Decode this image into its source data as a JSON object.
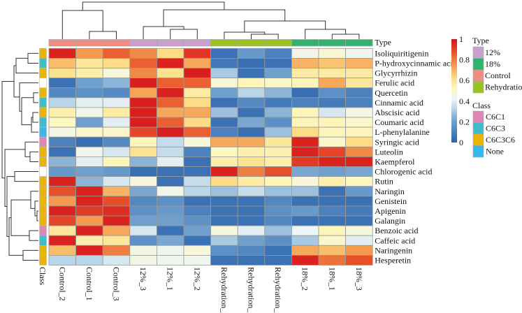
{
  "chart_data": {
    "type": "heatmap",
    "title": "",
    "columns": [
      "Control_2",
      "Control_1",
      "Control_3",
      "12%_3",
      "12%_1",
      "12%_2",
      "Rehydration_2",
      "Rehydration_1",
      "Rehydration_3",
      "18%_2",
      "18%_1",
      "18%_3"
    ],
    "column_types": [
      "Control",
      "Control",
      "Control",
      "12%",
      "12%",
      "12%",
      "Rehydration",
      "Rehydration",
      "Rehydration",
      "18%",
      "18%",
      "18%"
    ],
    "rows": [
      "Isoliquiritigenin",
      "P-hydroxycinnamic acid",
      "Glycyrrhizin",
      "Ferulic acid",
      "Quercetin",
      "Cinnamic acid",
      "Abscisic acid",
      "Coumaric acid",
      "L-phenylalanine",
      "Syringic acid",
      "Luteolin",
      "Kaempferol",
      "Chlorogenic acid",
      "Rutin",
      "Naringin",
      "Genistein",
      "Apigenin",
      "Galangin",
      "Benzoic acid",
      "Caffeic acid",
      "Naringenin",
      "Hesperetin"
    ],
    "row_classes": [
      "C6C3C6",
      "C6C3",
      "C6C3C6",
      null,
      "C6C3C6",
      "C6C3",
      "C6C3C6",
      "C6C3",
      "None",
      "C6C1",
      "C6C3C6",
      "C6C3C6",
      null,
      "C6C3C6",
      "C6C3C6",
      "C6C3C6",
      "C6C3C6",
      "C6C3C6",
      "C6C1",
      "C6C3",
      "C6C3C6",
      "C6C3C6"
    ],
    "values": [
      [
        0.97,
        0.75,
        0.85,
        0.78,
        0.62,
        0.93,
        0.05,
        0.18,
        0.1,
        0.45,
        0.48,
        0.43
      ],
      [
        0.68,
        0.58,
        0.62,
        0.85,
        0.97,
        0.72,
        0.07,
        0.04,
        0.05,
        0.7,
        0.67,
        0.7
      ],
      [
        0.6,
        0.55,
        0.47,
        0.78,
        0.6,
        0.98,
        0.3,
        0.05,
        0.2,
        0.57,
        0.57,
        0.57
      ],
      [
        0.05,
        0.2,
        0.25,
        0.98,
        0.85,
        0.85,
        0.48,
        0.53,
        0.5,
        0.53,
        0.72,
        0.58
      ],
      [
        0.12,
        0.15,
        0.13,
        0.73,
        0.97,
        0.57,
        0.2,
        0.33,
        0.25,
        0.04,
        0.15,
        0.1
      ],
      [
        0.33,
        0.4,
        0.4,
        0.98,
        0.85,
        0.62,
        0.05,
        0.13,
        0.08,
        0.1,
        0.08,
        0.1
      ],
      [
        0.55,
        0.44,
        0.57,
        0.98,
        0.72,
        0.72,
        0.28,
        0.05,
        0.25,
        0.53,
        0.38,
        0.45
      ],
      [
        0.52,
        0.2,
        0.4,
        0.98,
        0.85,
        0.62,
        0.05,
        0.22,
        0.15,
        0.53,
        0.53,
        0.5
      ],
      [
        0.45,
        0.5,
        0.5,
        0.9,
        0.98,
        0.85,
        0.1,
        0.04,
        0.28,
        0.62,
        0.53,
        0.53
      ],
      [
        0.1,
        0.04,
        0.13,
        0.53,
        0.35,
        0.47,
        0.72,
        0.72,
        0.58,
        0.97,
        0.5,
        0.62
      ],
      [
        0.05,
        0.43,
        0.38,
        0.6,
        0.35,
        0.1,
        0.52,
        0.55,
        0.55,
        0.97,
        0.9,
        0.78
      ],
      [
        0.25,
        0.4,
        0.53,
        0.25,
        0.4,
        0.05,
        0.55,
        0.6,
        0.55,
        0.92,
        0.97,
        0.97
      ],
      [
        0.18,
        0.2,
        0.18,
        0.04,
        0.05,
        0.05,
        0.97,
        0.8,
        0.88,
        0.22,
        0.2,
        0.22
      ],
      [
        0.97,
        0.25,
        0.38,
        0.46,
        0.05,
        0.35,
        0.62,
        0.57,
        0.53,
        0.47,
        0.55,
        0.52
      ],
      [
        0.88,
        0.97,
        0.7,
        0.22,
        0.44,
        0.33,
        0.28,
        0.35,
        0.28,
        0.28,
        0.05,
        0.18
      ],
      [
        0.75,
        0.97,
        0.88,
        0.12,
        0.15,
        0.05,
        0.05,
        0.05,
        0.12,
        0.05,
        0.05,
        0.05
      ],
      [
        0.97,
        0.92,
        0.95,
        0.15,
        0.18,
        0.1,
        0.05,
        0.05,
        0.15,
        0.18,
        0.1,
        0.08
      ],
      [
        0.9,
        0.75,
        0.97,
        0.2,
        0.2,
        0.15,
        0.05,
        0.05,
        0.12,
        0.05,
        0.05,
        0.05
      ],
      [
        0.58,
        0.97,
        0.72,
        0.38,
        0.05,
        0.2,
        0.47,
        0.4,
        0.28,
        0.42,
        0.53,
        0.47
      ],
      [
        0.97,
        0.55,
        0.58,
        0.15,
        0.22,
        0.05,
        0.3,
        0.2,
        0.15,
        0.3,
        0.5,
        0.4
      ],
      [
        0.68,
        0.97,
        0.8,
        0.45,
        0.43,
        0.47,
        0.15,
        0.12,
        0.05,
        0.72,
        0.68,
        0.75
      ],
      [
        0.33,
        0.33,
        0.38,
        0.45,
        0.43,
        0.43,
        0.05,
        0.05,
        0.05,
        0.97,
        0.82,
        0.88
      ]
    ],
    "value_range": [
      0,
      1
    ],
    "colorbar_ticks": [
      "1",
      "0.8",
      "0.6",
      "0.4",
      "0.2",
      "0"
    ],
    "colorscale": [
      "#2A63AD",
      "#6E9FCD",
      "#B9D5E8",
      "#EEF5F5",
      "#FDF8C0",
      "#FDDC85",
      "#F59A4F",
      "#E5502A",
      "#D6141B"
    ],
    "row_dendrogram": true,
    "column_dendrogram": true,
    "type_annotation_label": "Type",
    "class_annotation_label": "Class",
    "legend": {
      "type_title": "Type",
      "types": [
        {
          "name": "12%",
          "color": "#C9A0CC"
        },
        {
          "name": "18%",
          "color": "#2FB36E"
        },
        {
          "name": "Control",
          "color": "#F08C80"
        },
        {
          "name": "Rehydration",
          "color": "#98C41E"
        }
      ],
      "class_title": "Class",
      "classes": [
        {
          "name": "C6C1",
          "color": "#DE86B8"
        },
        {
          "name": "C6C3",
          "color": "#3EBECB"
        },
        {
          "name": "C6C3C6",
          "color": "#EAB400"
        },
        {
          "name": "None",
          "color": "#35B8EA"
        }
      ]
    }
  }
}
